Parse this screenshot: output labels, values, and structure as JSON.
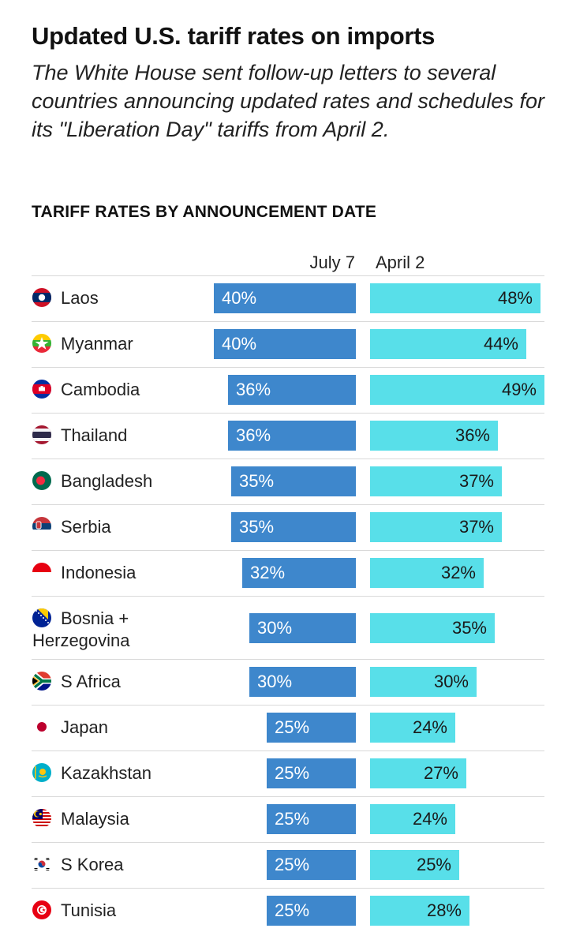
{
  "header": {
    "title": "Updated U.S. tariff rates on imports",
    "subtitle": "The White House sent follow-up letters to several countries announcing updated rates and schedules for its \"Liberation Day\" tariffs from April 2.",
    "section_label": "TARIFF RATES BY ANNOUNCEMENT DATE"
  },
  "chart_data": {
    "type": "bar",
    "title": "Updated U.S. tariff rates on imports",
    "subtitle": "TARIFF RATES BY ANNOUNCEMENT DATE",
    "categories": [
      "Laos",
      "Myanmar",
      "Cambodia",
      "Thailand",
      "Bangladesh",
      "Serbia",
      "Indonesia",
      "Bosnia + Herzegovina",
      "S Africa",
      "Japan",
      "Kazakhstan",
      "Malaysia",
      "S Korea",
      "Tunisia"
    ],
    "series": [
      {
        "name": "July 7",
        "values": [
          40,
          40,
          36,
          36,
          35,
          35,
          32,
          30,
          30,
          25,
          25,
          25,
          25,
          25
        ],
        "color": "#3e87cc"
      },
      {
        "name": "April 2",
        "values": [
          48,
          44,
          49,
          36,
          37,
          37,
          32,
          35,
          30,
          24,
          27,
          24,
          25,
          28
        ],
        "color": "#58dfe9"
      }
    ],
    "value_suffix": "%",
    "orientation": "horizontal",
    "layout": "diverging-back-to-back",
    "grid": false,
    "legend": "column-headers-top"
  },
  "flags": [
    "laos",
    "myanmar",
    "cambodia",
    "thailand",
    "bangladesh",
    "serbia",
    "indonesia",
    "bosnia",
    "south-africa",
    "japan",
    "kazakhstan",
    "malaysia",
    "south-korea",
    "tunisia"
  ]
}
